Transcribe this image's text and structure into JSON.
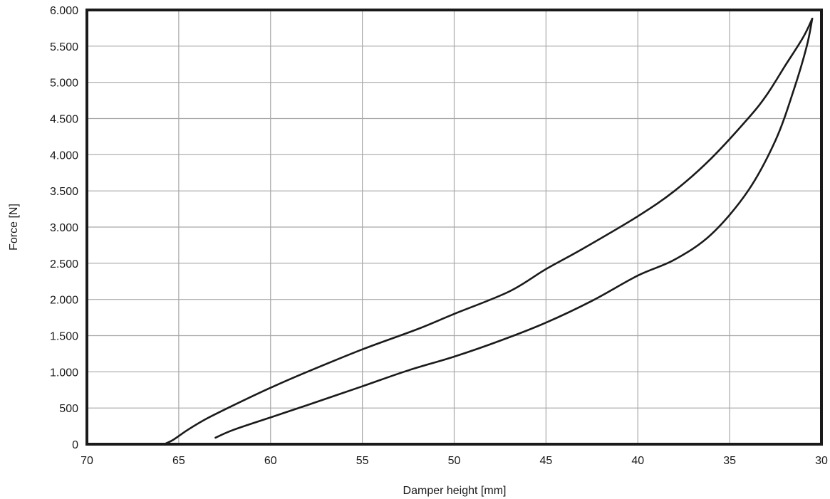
{
  "chart_data": {
    "type": "line",
    "title": "",
    "xlabel": "Damper height [mm]",
    "ylabel": "Force [N]",
    "xlim": [
      70,
      30
    ],
    "ylim": [
      0,
      6000
    ],
    "x_reversed": true,
    "grid": true,
    "x_ticks": [
      70,
      65,
      60,
      55,
      50,
      45,
      40,
      35,
      30
    ],
    "x_tick_labels": [
      "70",
      "65",
      "60",
      "55",
      "50",
      "45",
      "40",
      "35",
      "30"
    ],
    "y_ticks": [
      0,
      500,
      1000,
      1500,
      2000,
      2500,
      3000,
      3500,
      4000,
      4500,
      5000,
      5500,
      6000
    ],
    "y_tick_labels": [
      "0",
      "500",
      "1.000",
      "1.500",
      "2.000",
      "2.500",
      "3.000",
      "3.500",
      "4.000",
      "4.500",
      "5.000",
      "5.500",
      "6.000"
    ],
    "colors": {
      "line": "#1a1a1a",
      "grid": "#a8a8a8",
      "frame": "#1a1a1a"
    },
    "series": [
      {
        "points": [
          [
            65.8,
            0
          ],
          [
            65.3,
            60
          ],
          [
            64.5,
            200
          ],
          [
            63.5,
            350
          ],
          [
            62.0,
            540
          ],
          [
            60.0,
            780
          ],
          [
            58.0,
            1000
          ],
          [
            55.0,
            1310
          ],
          [
            52.0,
            1590
          ],
          [
            50.0,
            1800
          ],
          [
            47.0,
            2110
          ],
          [
            45.0,
            2420
          ],
          [
            43.0,
            2700
          ],
          [
            40.0,
            3150
          ],
          [
            38.0,
            3500
          ],
          [
            36.0,
            3950
          ],
          [
            34.0,
            4500
          ],
          [
            33.0,
            4820
          ],
          [
            32.0,
            5220
          ],
          [
            31.0,
            5620
          ],
          [
            30.5,
            5880
          ]
        ]
      },
      {
        "points": [
          [
            30.5,
            5880
          ],
          [
            30.8,
            5500
          ],
          [
            31.5,
            4900
          ],
          [
            32.5,
            4200
          ],
          [
            34.0,
            3500
          ],
          [
            36.0,
            2900
          ],
          [
            38.0,
            2550
          ],
          [
            40.0,
            2330
          ],
          [
            42.5,
            1980
          ],
          [
            45.0,
            1680
          ],
          [
            47.5,
            1430
          ],
          [
            50.0,
            1210
          ],
          [
            52.5,
            1020
          ],
          [
            55.0,
            800
          ],
          [
            58.0,
            540
          ],
          [
            60.0,
            370
          ],
          [
            62.0,
            200
          ],
          [
            63.0,
            90
          ]
        ]
      }
    ]
  }
}
